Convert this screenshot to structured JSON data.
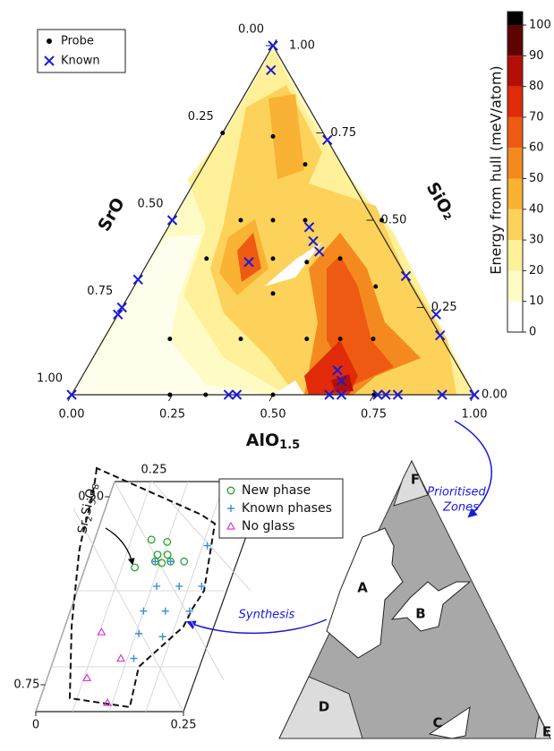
{
  "ternary": {
    "legend": [
      "Probe",
      "Known"
    ],
    "probe": [
      [
        0,
        0.75
      ],
      [
        0.13,
        0.74
      ],
      [
        0.25,
        0.66
      ],
      [
        0.17,
        0.5
      ],
      [
        0.25,
        0.5
      ],
      [
        0.33,
        0.5
      ],
      [
        0.52,
        0.5
      ],
      [
        0.14,
        0.39
      ],
      [
        0.305,
        0.39
      ],
      [
        0.394,
        0.38
      ],
      [
        0.472,
        0.39
      ],
      [
        0.34,
        0.16
      ],
      [
        0.504,
        0.16
      ],
      [
        0.587,
        0.16
      ],
      [
        0.164,
        0.16
      ],
      [
        0.669,
        0.16
      ],
      [
        0.244,
        0
      ],
      [
        0.333,
        0
      ],
      [
        0.5,
        0
      ],
      [
        0.751,
        0
      ],
      [
        0.355,
        0.29
      ],
      [
        0.6,
        0.31
      ]
    ],
    "known": [
      [
        0,
        1
      ],
      [
        0.03,
        0.93
      ],
      [
        0.27,
        0.73
      ],
      [
        0,
        0.5
      ],
      [
        0,
        0.33
      ],
      [
        0,
        0.25
      ],
      [
        0,
        0.23
      ],
      [
        0,
        0
      ],
      [
        0.25,
        0.38
      ],
      [
        0.35,
        0.48
      ],
      [
        0.38,
        0.44
      ],
      [
        0.41,
        0.41
      ],
      [
        0.39,
        0
      ],
      [
        0.41,
        0
      ],
      [
        0.64,
        0
      ],
      [
        0.67,
        0
      ],
      [
        0.76,
        0
      ],
      [
        0.78,
        0
      ],
      [
        0.81,
        0
      ],
      [
        0.92,
        0
      ],
      [
        1,
        0
      ],
      [
        0.625,
        0.07
      ],
      [
        0.65,
        0.04
      ],
      [
        0.66,
        0.34
      ],
      [
        0.79,
        0.23
      ],
      [
        0.83,
        0.17
      ]
    ],
    "axes": {
      "sro": {
        "label": "SrO",
        "ticks": [
          {
            "value": 0,
            "label": "0.00"
          },
          {
            "value": 0.25,
            "label": "0.25"
          },
          {
            "value": 0.5,
            "label": "0.50"
          },
          {
            "value": 0.75,
            "label": "0.75"
          },
          {
            "value": 1,
            "label": "1.00"
          }
        ]
      },
      "sio2": {
        "label": "SiO₂",
        "ticks": [
          {
            "value": 0,
            "label": "0.00"
          },
          {
            "value": 0.25,
            "label": "0.25"
          },
          {
            "value": 0.5,
            "label": "0.50"
          },
          {
            "value": 0.75,
            "label": "0.75"
          },
          {
            "value": 1,
            "label": "1.00"
          }
        ]
      },
      "alo": {
        "label": [
          "AlO",
          "1.5"
        ],
        "ticks": [
          {
            "value": 0,
            "label": "0.00"
          },
          {
            "value": 0.25,
            "label": "0.25"
          },
          {
            "value": 0.5,
            "label": "0.50"
          },
          {
            "value": 0.75,
            "label": "0.75"
          },
          {
            "value": 1,
            "label": "1.00"
          }
        ]
      }
    },
    "colorbar": {
      "label": "Energy from hull (meV/atom)",
      "ticks": [
        0,
        10,
        20,
        30,
        40,
        50,
        60,
        70,
        80,
        90,
        100
      ],
      "colors": [
        "#ffffff",
        "#fffbc4",
        "#fff09a",
        "#fcd25a",
        "#f9b233",
        "#f48a1f",
        "#ee5a12",
        "#e02a08",
        "#b30f05",
        "#5e0202"
      ]
    }
  },
  "arrows": {
    "prioritised": [
      "Prioritised",
      "Zones"
    ],
    "synthesis": "Synthesis"
  },
  "zoom": {
    "phase_label": [
      "Sr",
      "2",
      "Si",
      "3",
      "O",
      "8"
    ],
    "legend": [
      {
        "name": "New phase",
        "color": "#2ca02c"
      },
      {
        "name": "Known phases",
        "color": "#3a8fd8"
      },
      {
        "name": "No glass",
        "color": "#d63cd6"
      }
    ],
    "new_phase": [
      [
        0.096,
        0.557
      ],
      [
        0.124,
        0.56
      ],
      [
        0.115,
        0.577
      ],
      [
        0.115,
        0.586
      ],
      [
        0.127,
        0.588
      ],
      [
        0.132,
        0.577
      ],
      [
        0.141,
        0.586
      ],
      [
        0.164,
        0.586
      ],
      [
        0.084,
        0.594
      ]
    ],
    "known_phases": [
      [
        0.194,
        0.565
      ],
      [
        0.132,
        0.619
      ],
      [
        0.17,
        0.619
      ],
      [
        0.208,
        0.619
      ],
      [
        0.124,
        0.652
      ],
      [
        0.161,
        0.652
      ],
      [
        0.202,
        0.652
      ],
      [
        0.129,
        0.682
      ],
      [
        0.171,
        0.686
      ],
      [
        0.135,
        0.715
      ],
      [
        0.141,
        0.586
      ],
      [
        0.115,
        0.586
      ]
    ],
    "no_glass": [
      [
        0.065,
        0.68
      ],
      [
        0.113,
        0.715
      ],
      [
        0.067,
        0.741
      ],
      [
        0.116,
        0.774
      ]
    ],
    "left_ticks": [
      {
        "value": 0.5,
        "label": "0.50"
      },
      {
        "value": 0.75,
        "label": "0.75"
      }
    ],
    "top_tick": 0.25,
    "bottom_ticks": [
      0,
      0.25
    ]
  },
  "zones": [
    "A",
    "B",
    "C",
    "D",
    "E",
    "F"
  ]
}
